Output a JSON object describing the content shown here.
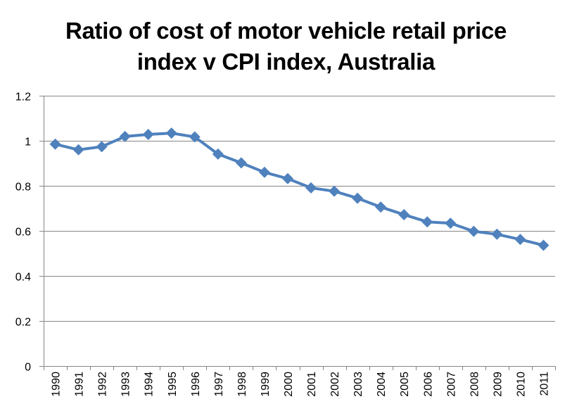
{
  "chart_data": {
    "type": "line",
    "title": "Ratio of cost of motor vehicle retail price index v CPI index, Australia",
    "title_lines": [
      "Ratio of cost of motor vehicle retail price",
      "index v CPI index, Australia"
    ],
    "xlabel": "",
    "ylabel": "",
    "categories": [
      "1990",
      "1991",
      "1992",
      "1993",
      "1994",
      "1995",
      "1996",
      "1997",
      "1998",
      "1999",
      "2000",
      "2001",
      "2002",
      "2003",
      "2004",
      "2005",
      "2006",
      "2007",
      "2008",
      "2009",
      "2010",
      "2011"
    ],
    "series": [
      {
        "name": "Ratio",
        "color": "#4F81BD",
        "marker": "diamond",
        "values": [
          0.985,
          0.96,
          0.974,
          1.019,
          1.028,
          1.034,
          1.017,
          0.941,
          0.902,
          0.86,
          0.832,
          0.791,
          0.776,
          0.745,
          0.706,
          0.672,
          0.64,
          0.634,
          0.598,
          0.585,
          0.562,
          0.536
        ]
      }
    ],
    "ylim": [
      0,
      1.2
    ],
    "yticks": [
      0,
      0.2,
      0.4,
      0.6,
      0.8,
      1,
      1.2
    ],
    "ytick_labels": [
      "0",
      "0.2",
      "0.4",
      "0.6",
      "0.8",
      "1",
      "1.2"
    ],
    "grid": "horizontal",
    "legend": "none"
  }
}
